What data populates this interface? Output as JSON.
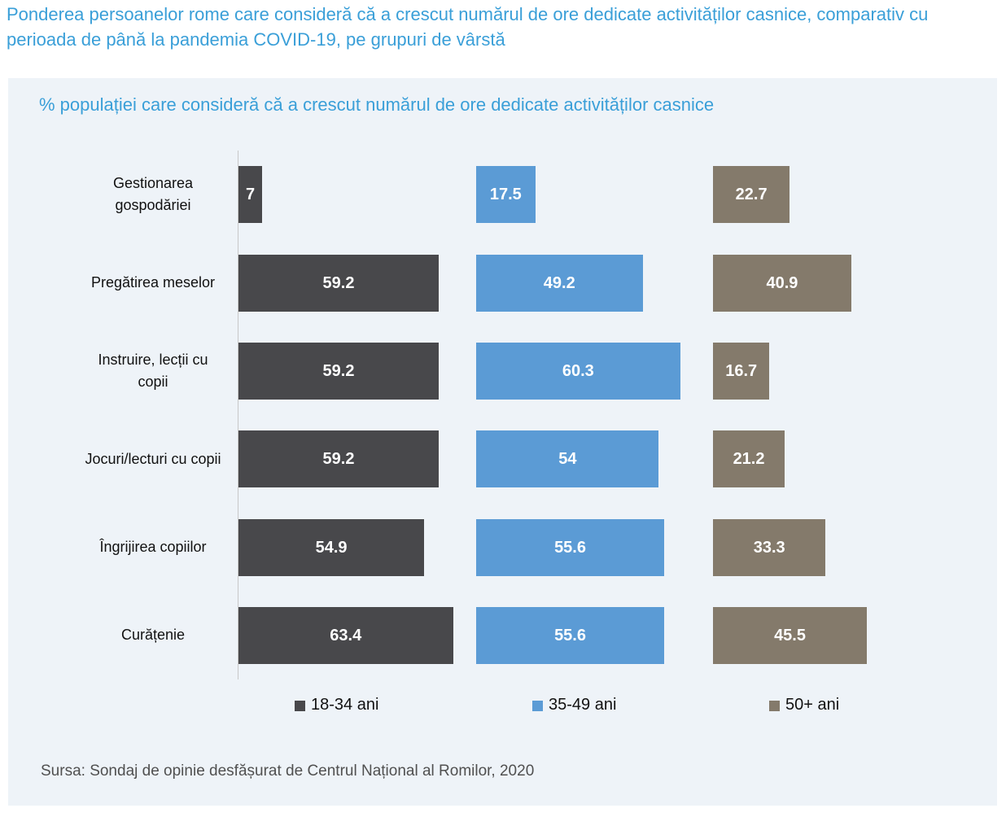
{
  "chart_data": {
    "type": "bar",
    "orientation": "horizontal",
    "title": "Ponderea persoanelor rome care consideră că a crescut numărul de ore dedicate activităților casnice, comparativ cu perioada de până la pandemia COVID-19, pe grupuri de vârstă",
    "subtitle": "% populației care consideră că a crescut numărul de ore dedicate activităților casnice",
    "source": "Sursa: Sondaj de opinie desfășurat de Centrul Național al Romilor, 2020",
    "categories": [
      "Gestionarea gospodăriei",
      "Pregătirea meselor",
      "Instruire, lecții cu copii",
      "Jocuri/lecturi cu copii",
      "Îngrijirea copiilor",
      "Curățenie"
    ],
    "series": [
      {
        "name": "18-34 ani",
        "color": "#48484b",
        "values": [
          7,
          59.2,
          59.2,
          59.2,
          54.9,
          63.4
        ]
      },
      {
        "name": "35-49 ani",
        "color": "#5b9bd5",
        "values": [
          17.5,
          49.2,
          60.3,
          54,
          55.6,
          55.6
        ]
      },
      {
        "name": "50+ ani",
        "color": "#847a6b",
        "values": [
          22.7,
          40.9,
          16.7,
          21.2,
          33.3,
          45.5
        ]
      }
    ],
    "xlim": [
      0,
      70
    ]
  }
}
